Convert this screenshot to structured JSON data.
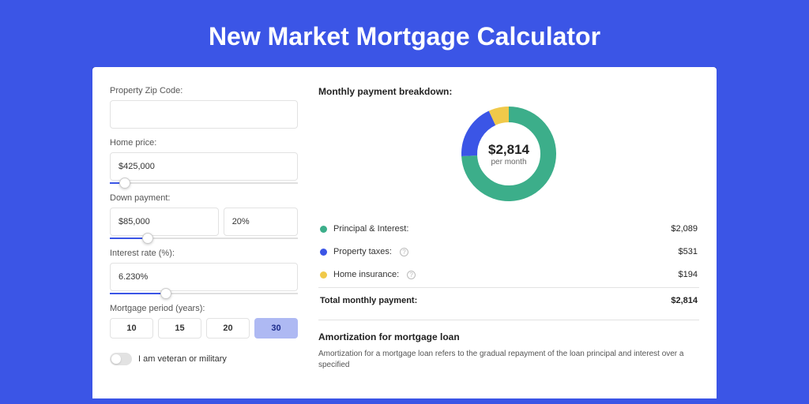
{
  "colors": {
    "page_bg": "#3b55e6",
    "card_bg": "#ffffff",
    "accent": "#3b55e6",
    "border": "#e2e2e2",
    "text": "#333333",
    "muted": "#666666",
    "period_active_bg": "#aeb9f3"
  },
  "title": "New Market Mortgage Calculator",
  "form": {
    "zip": {
      "label": "Property Zip Code:",
      "value": ""
    },
    "home_price": {
      "label": "Home price:",
      "value": "$425,000",
      "slider_pct": 8
    },
    "down_payment": {
      "label": "Down payment:",
      "amount": "$85,000",
      "percent": "20%",
      "slider_pct": 20
    },
    "interest_rate": {
      "label": "Interest rate (%):",
      "value": "6.230%",
      "slider_pct": 30
    },
    "mortgage_period": {
      "label": "Mortgage period (years):",
      "options": [
        "10",
        "15",
        "20",
        "30"
      ],
      "active": "30"
    },
    "veteran": {
      "label": "I am veteran or military",
      "on": false
    }
  },
  "breakdown": {
    "title": "Monthly payment breakdown:",
    "donut": {
      "amount": "$2,814",
      "sub": "per month",
      "type": "donut",
      "segments": [
        {
          "label": "Principal & Interest",
          "value": 2089,
          "percent": 74.2,
          "color": "#3cae8a"
        },
        {
          "label": "Property taxes",
          "value": 531,
          "percent": 18.9,
          "color": "#3b55e6"
        },
        {
          "label": "Home insurance",
          "value": 194,
          "percent": 6.9,
          "color": "#f0c94a"
        }
      ],
      "thickness": 20,
      "radius": 62,
      "background_color": "#ffffff"
    },
    "rows": [
      {
        "label": "Principal & Interest:",
        "value": "$2,089",
        "color": "#3cae8a",
        "info": false
      },
      {
        "label": "Property taxes:",
        "value": "$531",
        "color": "#3b55e6",
        "info": true
      },
      {
        "label": "Home insurance:",
        "value": "$194",
        "color": "#f0c94a",
        "info": true
      }
    ],
    "total": {
      "label": "Total monthly payment:",
      "value": "$2,814"
    }
  },
  "amortization": {
    "title": "Amortization for mortgage loan",
    "text": "Amortization for a mortgage loan refers to the gradual repayment of the loan principal and interest over a specified"
  }
}
